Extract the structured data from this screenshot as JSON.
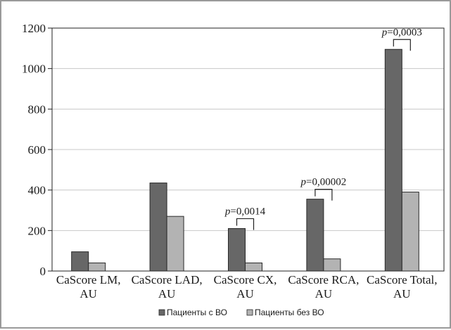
{
  "chart_data": {
    "type": "bar",
    "title": "",
    "xlabel": "",
    "ylabel": "",
    "ylim": [
      0,
      1200
    ],
    "yticks": [
      0,
      200,
      400,
      600,
      800,
      1000,
      1200
    ],
    "grid": true,
    "legend_position": "bottom",
    "categories": [
      [
        "CaScore LM,",
        "AU"
      ],
      [
        "CaScore LAD,",
        "AU"
      ],
      [
        "CaScore CX,",
        "AU"
      ],
      [
        "CaScore RCA,",
        "AU"
      ],
      [
        "CaScore Total,",
        "AU"
      ]
    ],
    "series": [
      {
        "name": "Пациенты с ВО",
        "color": "#676767",
        "values": [
          95,
          435,
          210,
          355,
          1095
        ]
      },
      {
        "name": "Пациенты без ВО",
        "color": "#b3b3b3",
        "values": [
          40,
          270,
          40,
          60,
          390
        ]
      }
    ],
    "annotations": [
      {
        "category_index": 2,
        "p_label": "p",
        "value": "=0,0014"
      },
      {
        "category_index": 3,
        "p_label": "p",
        "value": "=0,00002"
      },
      {
        "category_index": 4,
        "p_label": "p",
        "value": "=0,0003"
      }
    ]
  }
}
